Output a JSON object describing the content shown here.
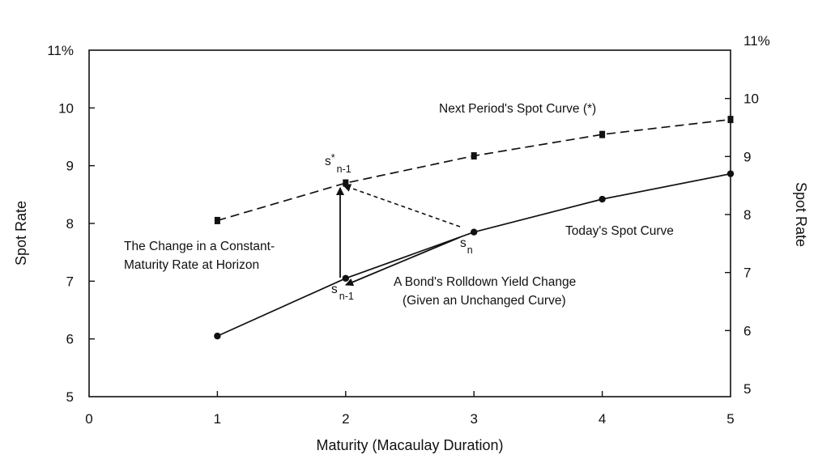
{
  "chart_data": {
    "type": "line",
    "xlabel": "Maturity (Macaulay Duration)",
    "ylabel_left": "Spot Rate",
    "ylabel_right": "Spot Rate",
    "xlim": [
      0,
      5
    ],
    "ylim": [
      5,
      11
    ],
    "x_ticks": [
      "0",
      "1",
      "2",
      "3",
      "4",
      "5"
    ],
    "y_ticks_left": [
      "5",
      "6",
      "7",
      "8",
      "9",
      "10",
      "11%"
    ],
    "y_ticks_right": [
      "5",
      "6",
      "7",
      "8",
      "9",
      "10",
      "11%"
    ],
    "grid": false,
    "series": [
      {
        "name": "Today's Spot Curve",
        "style": "solid",
        "marker": "circle",
        "x": [
          1,
          2,
          3,
          4,
          5
        ],
        "y": [
          6.05,
          7.05,
          7.85,
          8.42,
          8.86
        ]
      },
      {
        "name": "Next Period's Spot Curve (*)",
        "style": "dashed",
        "marker": "square",
        "x": [
          1,
          2,
          3,
          4,
          5
        ],
        "y": [
          8.05,
          8.7,
          9.17,
          9.54,
          9.8
        ]
      }
    ],
    "annotations": {
      "s_prime": {
        "base": "s",
        "sup": "*",
        "sub": "n-1"
      },
      "s_n": {
        "base": "s",
        "sub": "n"
      },
      "s_n1": {
        "base": "s",
        "sub": "n-1"
      },
      "constant_maturity": [
        "The Change in a Constant-",
        "Maturity Rate at Horizon"
      ],
      "rolldown": [
        "A Bond's Rolldown Yield Change",
        "(Given an Unchanged Curve)"
      ]
    }
  }
}
